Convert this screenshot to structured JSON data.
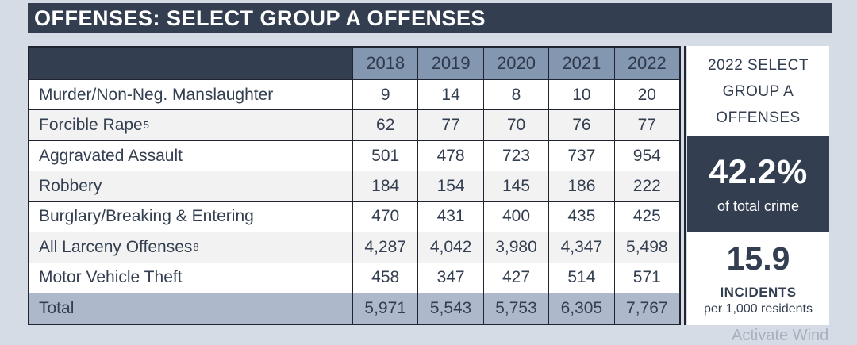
{
  "title": "OFFENSES: SELECT GROUP A OFFENSES",
  "table": {
    "years": [
      "2018",
      "2019",
      "2020",
      "2021",
      "2022"
    ],
    "rows": [
      {
        "label": "Murder/Non-Neg. Manslaughter",
        "values": [
          "9",
          "14",
          "8",
          "10",
          "20"
        ]
      },
      {
        "label": "Forcible Rape",
        "sup": "5",
        "values": [
          "62",
          "77",
          "70",
          "76",
          "77"
        ]
      },
      {
        "label": "Aggravated Assault",
        "values": [
          "501",
          "478",
          "723",
          "737",
          "954"
        ]
      },
      {
        "label": "Robbery",
        "values": [
          "184",
          "154",
          "145",
          "186",
          "222"
        ]
      },
      {
        "label": "Burglary/Breaking & Entering",
        "values": [
          "470",
          "431",
          "400",
          "435",
          "425"
        ]
      },
      {
        "label": "All Larceny Offenses",
        "sup": "8",
        "values": [
          "4,287",
          "4,042",
          "3,980",
          "4,347",
          "5,498"
        ]
      },
      {
        "label": "Motor Vehicle Theft",
        "values": [
          "458",
          "347",
          "427",
          "514",
          "571"
        ]
      }
    ],
    "total": {
      "label": "Total",
      "values": [
        "5,971",
        "5,543",
        "5,753",
        "6,305",
        "7,767"
      ]
    }
  },
  "sidebar": {
    "heading": "2022 SELECT\nGROUP A\nOFFENSES",
    "percent_value": "42.2%",
    "percent_caption": "of total crime",
    "rate_value": "15.9",
    "rate_label": "INCIDENTS",
    "rate_caption": "per 1,000 residents"
  },
  "watermark": "Activate Wind",
  "colors": {
    "dark_navy": "#333F50",
    "year_header_bg": "#8497B0",
    "total_row_bg": "#ADB9CA",
    "page_bg": "#D6DCE5",
    "alt_row_bg": "#F2F2F2",
    "grid_line": "#1F2430"
  }
}
